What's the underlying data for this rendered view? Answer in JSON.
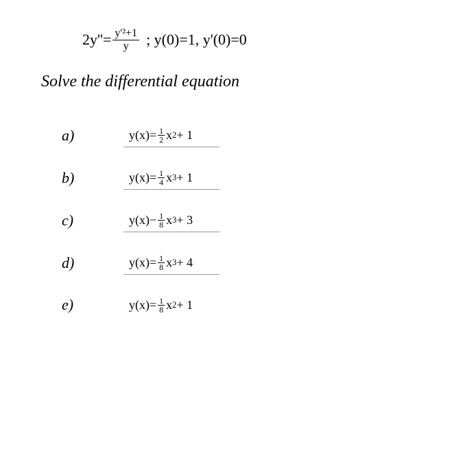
{
  "equation": {
    "lhs_coeff": "2y''",
    "eq_sign": "=",
    "frac_num": "y'²+1",
    "frac_den": "y",
    "conditions": " ;  y(0)=1, y'(0)=0"
  },
  "prompt": "Solve the differential equation",
  "options": [
    {
      "label": "a)",
      "y_prefix": "y(x) ",
      "op": "=",
      "frac_num": "1",
      "frac_den": "2",
      "power_base": "x",
      "power_exp": "2",
      "tail": " + 1",
      "underline": true
    },
    {
      "label": "b)",
      "y_prefix": "y(x) ",
      "op": "=",
      "frac_num": "1",
      "frac_den": "4",
      "power_base": "x",
      "power_exp": "3",
      "tail": " + 1",
      "underline": true
    },
    {
      "label": "c)",
      "y_prefix": "y(x) ",
      "op": "−",
      "frac_num": "1",
      "frac_den": "8",
      "power_base": "x",
      "power_exp": "3",
      "tail": " + 3",
      "underline": true
    },
    {
      "label": "d)",
      "y_prefix": "y(x) ",
      "op": "=",
      "frac_num": "1",
      "frac_den": "8",
      "power_base": "x",
      "power_exp": "3",
      "tail": " + 4",
      "underline": true
    },
    {
      "label": "e)",
      "y_prefix": "y(x) ",
      "op": "=",
      "frac_num": "1",
      "frac_den": "8",
      "power_base": "x",
      "power_exp": "2",
      "tail": " + 1",
      "underline": false
    }
  ]
}
